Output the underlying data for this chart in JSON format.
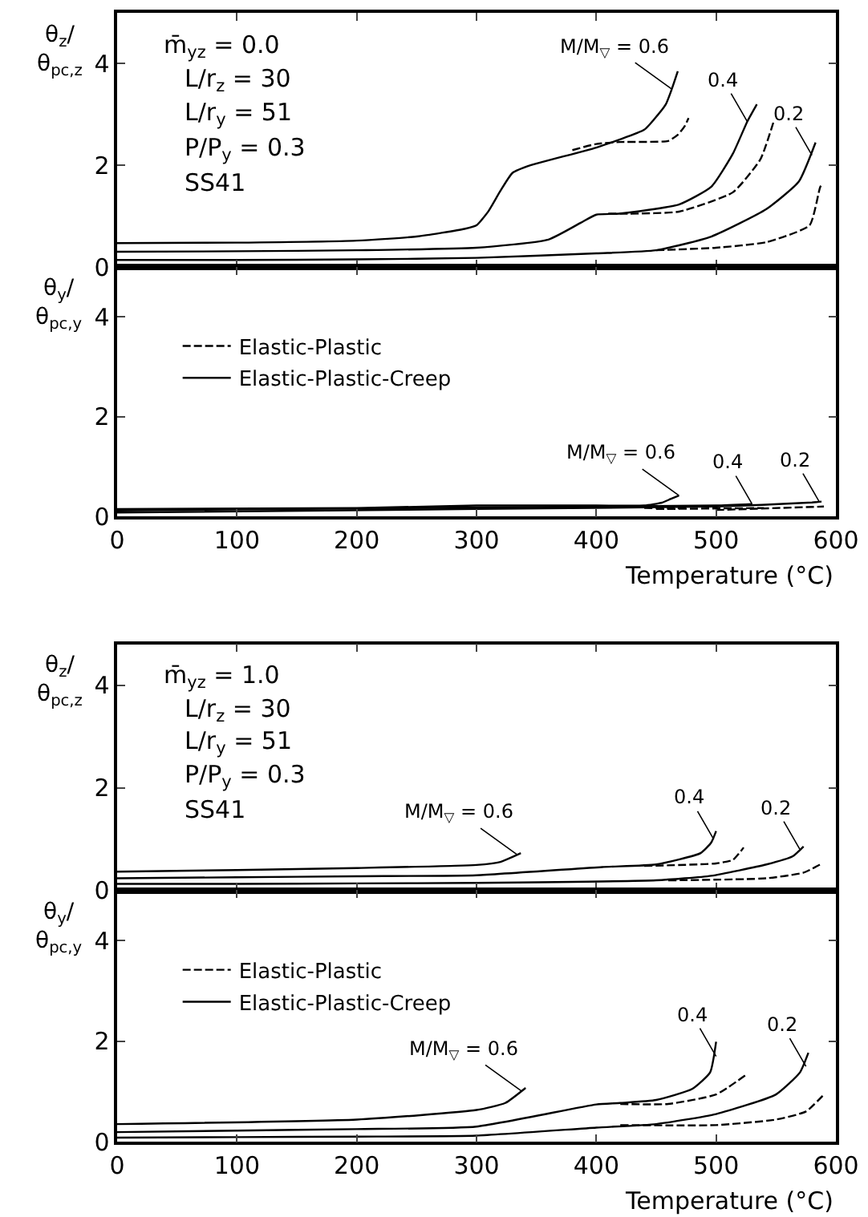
{
  "chart_data": [
    {
      "type": "line",
      "ylabel": "θ$_{z}$/θ$_{pc,z}$",
      "xlim": [
        0,
        600
      ],
      "xticks": [
        0,
        100,
        200,
        300,
        400,
        500,
        600
      ],
      "ylim": [
        0,
        5
      ],
      "yticks": [
        0,
        2,
        4
      ],
      "tick_labels": "y",
      "grid": false,
      "legend": false,
      "annotations": [
        "m̄$_{yz}$ = 0.0",
        "L/r$_{z}$ = 30",
        "L/r$_{y}$ = 51",
        "P/P$_{y}$ = 0.3",
        "SS41",
        {
          "text": "M/M$_{▽}$ = 0.6",
          "x": 463,
          "y": 3.5
        },
        {
          "text": "0.4",
          "x": 526,
          "y": 2.86
        },
        {
          "text": "0.2",
          "x": 580,
          "y": 2.2
        }
      ],
      "series": [
        {
          "color": "#000000",
          "line_style": "dashed",
          "x": [
            380,
            400,
            420,
            460,
            468,
            474,
            477
          ],
          "values": [
            2.3,
            2.42,
            2.46,
            2.48,
            2.6,
            2.78,
            2.93
          ]
        },
        {
          "color": "#000000",
          "line_style": "solid",
          "x": [
            0,
            100,
            200,
            250,
            290,
            300,
            310,
            320,
            330,
            345,
            400,
            440,
            448,
            458,
            463,
            468
          ],
          "values": [
            0.47,
            0.48,
            0.52,
            0.6,
            0.75,
            0.82,
            1.1,
            1.5,
            1.85,
            2.0,
            2.35,
            2.7,
            2.9,
            3.2,
            3.5,
            3.85
          ]
        },
        {
          "color": "#000000",
          "line_style": "solid",
          "x": [
            0,
            100,
            200,
            300,
            360,
            387,
            400,
            419,
            469,
            496,
            514,
            526,
            534
          ],
          "values": [
            0.3,
            0.31,
            0.33,
            0.38,
            0.54,
            0.87,
            1.03,
            1.05,
            1.23,
            1.58,
            2.23,
            2.86,
            3.2
          ]
        },
        {
          "color": "#000000",
          "line_style": "dashed",
          "x": [
            410,
            428,
            469,
            514,
            537,
            548
          ],
          "values": [
            1.05,
            1.05,
            1.09,
            1.47,
            2.12,
            2.86
          ]
        },
        {
          "color": "#000000",
          "line_style": "solid",
          "x": [
            0,
            100,
            200,
            300,
            400,
            450,
            496,
            542,
            569,
            583
          ],
          "values": [
            0.14,
            0.14,
            0.15,
            0.18,
            0.27,
            0.33,
            0.6,
            1.14,
            1.68,
            2.45
          ]
        },
        {
          "color": "#000000",
          "line_style": "dashed",
          "x": [
            450,
            500,
            542,
            578,
            587,
            589
          ],
          "values": [
            0.33,
            0.38,
            0.49,
            0.82,
            1.58,
            1.63
          ]
        }
      ]
    },
    {
      "type": "line",
      "ylabel": "θ$_{y}$/θ$_{pc,y}$",
      "xlabel": "Temperature (°C)",
      "xlim": [
        0,
        600
      ],
      "xticks": [
        0,
        100,
        200,
        300,
        400,
        500,
        600
      ],
      "ylim": [
        0,
        5
      ],
      "yticks": [
        0,
        2,
        4
      ],
      "grid": false,
      "legend": "top left",
      "annotations": [
        {
          "text": "M/M$_{▽}$ = 0.6",
          "x": 469,
          "y": 0.42
        },
        {
          "text": "0.4",
          "x": 530,
          "y": 0.25
        },
        {
          "text": "0.2",
          "x": 586,
          "y": 0.3
        }
      ],
      "series": [
        {
          "name": "Elastic-Plastic",
          "color": "#000000",
          "line_style": "dashed",
          "x": [
            440,
            460,
            475
          ],
          "values": [
            0.17,
            0.16,
            0.17
          ]
        },
        {
          "name": "Elastic-Plastic-Creep",
          "color": "#000000",
          "line_style": "solid",
          "x": [
            0,
            200,
            300,
            400,
            440,
            455,
            462,
            469
          ],
          "values": [
            0.15,
            0.17,
            0.22,
            0.22,
            0.22,
            0.28,
            0.35,
            0.42
          ]
        },
        {
          "color": "#000000",
          "line_style": "solid",
          "x": [
            0,
            300,
            400,
            500,
            530
          ],
          "values": [
            0.12,
            0.18,
            0.2,
            0.22,
            0.25
          ]
        },
        {
          "color": "#000000",
          "line_style": "dashed",
          "x": [
            450,
            540
          ],
          "values": [
            0.15,
            0.17
          ]
        },
        {
          "color": "#000000",
          "line_style": "solid",
          "x": [
            0,
            300,
            500,
            580,
            588
          ],
          "values": [
            0.08,
            0.15,
            0.2,
            0.28,
            0.3
          ]
        },
        {
          "color": "#000000",
          "line_style": "dashed",
          "x": [
            500,
            590
          ],
          "values": [
            0.13,
            0.2
          ]
        }
      ]
    },
    {
      "type": "line",
      "ylabel": "θ$_{z}$/θ$_{pc,z}$",
      "xlim": [
        0,
        600
      ],
      "xticks": [
        0,
        100,
        200,
        300,
        400,
        500,
        600
      ],
      "ylim": [
        0,
        4.8
      ],
      "yticks": [
        0,
        2,
        4
      ],
      "tick_labels": "y",
      "grid": false,
      "legend": false,
      "annotations": [
        "m̄$_{yz}$ = 1.0",
        "L/r$_{z}$ = 30",
        "L/r$_{y}$ = 51",
        "P/P$_{y}$ = 0.3",
        "SS41",
        {
          "text": "M/M$_{▽}$ = 0.6",
          "x": 334,
          "y": 0.7
        },
        {
          "text": "0.4",
          "x": 498,
          "y": 1.0
        },
        {
          "text": "0.2",
          "x": 570,
          "y": 0.8
        }
      ],
      "series": [
        {
          "color": "#000000",
          "line_style": "solid",
          "x": [
            0,
            100,
            200,
            300,
            320,
            337
          ],
          "values": [
            0.37,
            0.4,
            0.44,
            0.5,
            0.56,
            0.73
          ]
        },
        {
          "color": "#000000",
          "line_style": "solid",
          "x": [
            0,
            100,
            200,
            300,
            405,
            450,
            487,
            496,
            500
          ],
          "values": [
            0.24,
            0.26,
            0.28,
            0.3,
            0.46,
            0.51,
            0.73,
            0.94,
            1.16
          ]
        },
        {
          "color": "#000000",
          "line_style": "dashed",
          "x": [
            440,
            500,
            514,
            523
          ],
          "values": [
            0.48,
            0.53,
            0.6,
            0.84
          ]
        },
        {
          "color": "#000000",
          "line_style": "solid",
          "x": [
            0,
            100,
            200,
            300,
            450,
            496,
            542,
            564,
            573
          ],
          "values": [
            0.13,
            0.13,
            0.14,
            0.15,
            0.2,
            0.29,
            0.51,
            0.67,
            0.86
          ]
        },
        {
          "color": "#000000",
          "line_style": "dashed",
          "x": [
            460,
            542,
            573,
            587
          ],
          "values": [
            0.2,
            0.24,
            0.35,
            0.51
          ]
        }
      ]
    },
    {
      "type": "line",
      "ylabel": "θ$_{y}$/θ$_{pc,y}$",
      "xlabel": "Temperature (°C)",
      "xlim": [
        0,
        600
      ],
      "xticks": [
        0,
        100,
        200,
        300,
        400,
        500,
        600
      ],
      "ylim": [
        0,
        5
      ],
      "yticks": [
        0,
        2,
        4
      ],
      "grid": false,
      "legend": "top left",
      "annotations": [
        {
          "text": "M/M$_{▽}$ = 0.6",
          "x": 338,
          "y": 1.0
        },
        {
          "text": "0.4",
          "x": 500,
          "y": 1.7
        },
        {
          "text": "0.2",
          "x": 575,
          "y": 1.5
        }
      ],
      "series": [
        {
          "name": "Elastic-Plastic",
          "color": "#000000",
          "line_style": "dashed",
          "x": [
            420,
            460,
            500,
            525
          ],
          "values": [
            0.75,
            0.75,
            0.94,
            1.33
          ]
        },
        {
          "name": "Elastic-Plastic-Creep",
          "color": "#000000",
          "line_style": "solid",
          "x": [
            0,
            200,
            300,
            324,
            341
          ],
          "values": [
            0.35,
            0.44,
            0.63,
            0.77,
            1.07
          ]
        },
        {
          "color": "#000000",
          "line_style": "solid",
          "x": [
            0,
            100,
            200,
            300,
            400,
            420,
            450,
            480,
            495,
            500
          ],
          "values": [
            0.19,
            0.22,
            0.25,
            0.3,
            0.74,
            0.77,
            0.83,
            1.05,
            1.38,
            1.99
          ]
        },
        {
          "color": "#000000",
          "line_style": "solid",
          "x": [
            0,
            100,
            200,
            300,
            400,
            450,
            500,
            550,
            570,
            577
          ],
          "values": [
            0.08,
            0.09,
            0.1,
            0.12,
            0.28,
            0.35,
            0.55,
            0.94,
            1.38,
            1.77
          ]
        },
        {
          "color": "#000000",
          "line_style": "dashed",
          "x": [
            420,
            500,
            550,
            575,
            590
          ],
          "values": [
            0.33,
            0.33,
            0.44,
            0.6,
            0.94
          ]
        }
      ]
    }
  ]
}
